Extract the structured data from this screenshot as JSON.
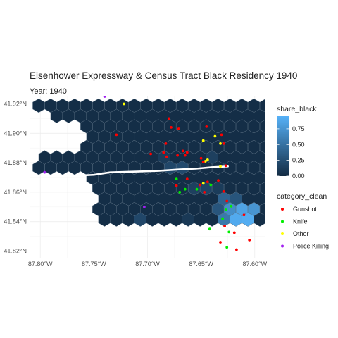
{
  "title": "Eisenhower Expressway & Census Tract Black Residency 1940",
  "subtitle": "Year: 1940",
  "chart_data": {
    "type": "hexbin map",
    "x_ticks": [
      "87.80°W",
      "87.75°W",
      "87.70°W",
      "87.65°W",
      "87.60°W"
    ],
    "x_tick_values": [
      -87.8,
      -87.75,
      -87.7,
      -87.65,
      -87.6
    ],
    "y_ticks": [
      "41.92°N",
      "41.90°N",
      "41.88°N",
      "41.86°N",
      "41.84°N",
      "41.82°N"
    ],
    "y_tick_values": [
      41.92,
      41.9,
      41.88,
      41.86,
      41.84,
      41.82
    ],
    "xlim": [
      -87.81,
      -87.59
    ],
    "ylim": [
      41.815,
      41.925
    ],
    "grid": true,
    "fill_legend": {
      "title": "share_black",
      "ticks": [
        "0.75",
        "0.50",
        "0.25",
        "0.00"
      ],
      "tick_values": [
        0.75,
        0.5,
        0.25,
        0.0
      ],
      "range": [
        0,
        0.95
      ],
      "color_low": "#132b43",
      "color_high": "#56b1f7"
    },
    "point_legend": {
      "title": "category_clean",
      "items": [
        {
          "label": "Gunshot",
          "color": "#ff0000"
        },
        {
          "label": "Knife",
          "color": "#00ee00"
        },
        {
          "label": "Other",
          "color": "#ffff00"
        },
        {
          "label": "Police Killing",
          "color": "#a020f0"
        }
      ]
    },
    "expressway": {
      "color": "#ffffff",
      "path": [
        [
          -87.79,
          41.8713
        ],
        [
          -87.765,
          41.8713
        ],
        [
          -87.75,
          41.8718
        ],
        [
          -87.735,
          41.8735
        ],
        [
          -87.71,
          41.874
        ],
        [
          -87.69,
          41.8745
        ],
        [
          -87.67,
          41.8755
        ],
        [
          -87.655,
          41.876
        ],
        [
          -87.64,
          41.877
        ],
        [
          -87.625,
          41.8775
        ]
      ]
    },
    "hexbins": [
      {
        "lon": -87.645,
        "lat": 41.8895,
        "share_black": 0.05
      },
      {
        "lon": -87.645,
        "lat": 41.8845,
        "share_black": 0.25
      },
      {
        "lon": -87.635,
        "lat": 41.8845,
        "share_black": 0.15
      },
      {
        "lon": -87.685,
        "lat": 41.8845,
        "share_black": 0.12
      },
      {
        "lon": -87.675,
        "lat": 41.8795,
        "share_black": 0.2
      },
      {
        "lon": -87.665,
        "lat": 41.8795,
        "share_black": 0.22
      },
      {
        "lon": -87.655,
        "lat": 41.8645,
        "share_black": 0.15
      },
      {
        "lon": -87.645,
        "lat": 41.8645,
        "share_black": 0.25
      },
      {
        "lon": -87.635,
        "lat": 41.8595,
        "share_black": 0.12
      },
      {
        "lon": -87.645,
        "lat": 41.8595,
        "share_black": 0.18
      },
      {
        "lon": -87.625,
        "lat": 41.8545,
        "share_black": 0.4
      },
      {
        "lon": -87.615,
        "lat": 41.8545,
        "share_black": 0.3
      },
      {
        "lon": -87.635,
        "lat": 41.8495,
        "share_black": 0.3
      },
      {
        "lon": -87.625,
        "lat": 41.8495,
        "share_black": 0.7
      },
      {
        "lon": -87.615,
        "lat": 41.8495,
        "share_black": 0.85
      },
      {
        "lon": -87.605,
        "lat": 41.8495,
        "share_black": 0.7
      },
      {
        "lon": -87.63,
        "lat": 41.8445,
        "share_black": 0.35
      },
      {
        "lon": -87.62,
        "lat": 41.8445,
        "share_black": 0.85
      },
      {
        "lon": -87.61,
        "lat": 41.8445,
        "share_black": 0.9
      },
      {
        "lon": -87.6,
        "lat": 41.8445,
        "share_black": 0.75
      },
      {
        "lon": -87.625,
        "lat": 41.8395,
        "share_black": 0.55
      },
      {
        "lon": -87.615,
        "lat": 41.8395,
        "share_black": 0.9
      },
      {
        "lon": -87.605,
        "lat": 41.8395,
        "share_black": 0.92
      },
      {
        "lon": -87.63,
        "lat": 41.8345,
        "share_black": 0.65
      },
      {
        "lon": -87.62,
        "lat": 41.8345,
        "share_black": 0.85
      },
      {
        "lon": -87.61,
        "lat": 41.8345,
        "share_black": 0.9
      },
      {
        "lon": -87.6,
        "lat": 41.8345,
        "share_black": 0.8
      },
      {
        "lon": -87.625,
        "lat": 41.8295,
        "share_black": 0.75
      },
      {
        "lon": -87.615,
        "lat": 41.8295,
        "share_black": 0.8
      },
      {
        "lon": -87.605,
        "lat": 41.8295,
        "share_black": 0.92
      },
      {
        "lon": -87.62,
        "lat": 41.8245,
        "share_black": 0.5
      },
      {
        "lon": -87.61,
        "lat": 41.8245,
        "share_black": 0.8
      },
      {
        "lon": -87.6,
        "lat": 41.8245,
        "share_black": 0.85
      },
      {
        "lon": -87.615,
        "lat": 41.8195,
        "share_black": 0.55
      },
      {
        "lon": -87.605,
        "lat": 41.8195,
        "share_black": 0.6
      },
      {
        "lon": -87.705,
        "lat": 41.8395,
        "share_black": 0.2
      },
      {
        "lon": -87.7,
        "lat": 41.8345,
        "share_black": 0.15
      },
      {
        "lon": -87.665,
        "lat": 41.8395,
        "share_black": 0.1
      },
      {
        "lon": -87.655,
        "lat": 41.8345,
        "share_black": 0.12
      },
      {
        "lon": -87.645,
        "lat": 41.8245,
        "share_black": 0.1
      }
    ],
    "incidents": [
      {
        "category": "Police Killing",
        "lon": -87.796,
        "lat": 41.8735
      },
      {
        "category": "Police Killing",
        "lon": -87.74,
        "lat": 41.925
      },
      {
        "category": "Police Killing",
        "lon": -87.703,
        "lat": 41.85
      },
      {
        "category": "Other",
        "lon": -87.722,
        "lat": 41.92
      },
      {
        "category": "Gunshot",
        "lon": -87.729,
        "lat": 41.899
      },
      {
        "category": "Gunshot",
        "lon": -87.678,
        "lat": 41.904
      },
      {
        "category": "Gunshot",
        "lon": -87.671,
        "lat": 41.903
      },
      {
        "category": "Gunshot",
        "lon": -87.68,
        "lat": 41.91
      },
      {
        "category": "Gunshot",
        "lon": -87.683,
        "lat": 41.893
      },
      {
        "category": "Gunshot",
        "lon": -87.645,
        "lat": 41.9045
      },
      {
        "category": "Other",
        "lon": -87.637,
        "lat": 41.898
      },
      {
        "category": "Other",
        "lon": -87.632,
        "lat": 41.893
      },
      {
        "category": "Gunshot",
        "lon": -87.631,
        "lat": 41.899
      },
      {
        "category": "Gunshot",
        "lon": -87.629,
        "lat": 41.893
      },
      {
        "category": "Other",
        "lon": -87.648,
        "lat": 41.895
      },
      {
        "category": "Gunshot",
        "lon": -87.697,
        "lat": 41.886
      },
      {
        "category": "Gunshot",
        "lon": -87.685,
        "lat": 41.887
      },
      {
        "category": "Gunshot",
        "lon": -87.682,
        "lat": 41.884
      },
      {
        "category": "Gunshot",
        "lon": -87.672,
        "lat": 41.885
      },
      {
        "category": "Gunshot",
        "lon": -87.667,
        "lat": 41.888
      },
      {
        "category": "Gunshot",
        "lon": -87.665,
        "lat": 41.885
      },
      {
        "category": "Gunshot",
        "lon": -87.663,
        "lat": 41.887
      },
      {
        "category": "Gunshot",
        "lon": -87.65,
        "lat": 41.883
      },
      {
        "category": "Other",
        "lon": -87.646,
        "lat": 41.881
      },
      {
        "category": "Other",
        "lon": -87.644,
        "lat": 41.882
      },
      {
        "category": "Gunshot",
        "lon": -87.648,
        "lat": 41.8805
      },
      {
        "category": "Other",
        "lon": -87.632,
        "lat": 41.8775
      },
      {
        "category": "Gunshot",
        "lon": -87.627,
        "lat": 41.878
      },
      {
        "category": "Knife",
        "lon": -87.673,
        "lat": 41.869
      },
      {
        "category": "Gunshot",
        "lon": -87.673,
        "lat": 41.8645
      },
      {
        "category": "Knife",
        "lon": -87.67,
        "lat": 41.86
      },
      {
        "category": "Gunshot",
        "lon": -87.663,
        "lat": 41.869
      },
      {
        "category": "Knife",
        "lon": -87.665,
        "lat": 41.862
      },
      {
        "category": "Other",
        "lon": -87.648,
        "lat": 41.866
      },
      {
        "category": "Gunshot",
        "lon": -87.651,
        "lat": 41.865
      },
      {
        "category": "Knife",
        "lon": -87.654,
        "lat": 41.862
      },
      {
        "category": "Gunshot",
        "lon": -87.647,
        "lat": 41.86
      },
      {
        "category": "Gunshot",
        "lon": -87.644,
        "lat": 41.867
      },
      {
        "category": "Knife",
        "lon": -87.641,
        "lat": 41.865
      },
      {
        "category": "Gunshot",
        "lon": -87.634,
        "lat": 41.868
      },
      {
        "category": "Gunshot",
        "lon": -87.629,
        "lat": 41.8605
      },
      {
        "category": "Gunshot",
        "lon": -87.626,
        "lat": 41.854
      },
      {
        "category": "Knife",
        "lon": -87.627,
        "lat": 41.848
      },
      {
        "category": "Knife",
        "lon": -87.622,
        "lat": 41.8505
      },
      {
        "category": "Knife",
        "lon": -87.63,
        "lat": 41.842
      },
      {
        "category": "Gunshot",
        "lon": -87.628,
        "lat": 41.837
      },
      {
        "category": "Knife",
        "lon": -87.624,
        "lat": 41.833
      },
      {
        "category": "Knife",
        "lon": -87.642,
        "lat": 41.835
      },
      {
        "category": "Gunshot",
        "lon": -87.632,
        "lat": 41.826
      },
      {
        "category": "Knife",
        "lon": -87.626,
        "lat": 41.8225
      },
      {
        "category": "Gunshot",
        "lon": -87.617,
        "lat": 41.821
      },
      {
        "category": "Gunshot",
        "lon": -87.605,
        "lat": 41.8275
      },
      {
        "category": "Gunshot",
        "lon": -87.619,
        "lat": 41.8325
      },
      {
        "category": "Gunshot",
        "lon": -87.61,
        "lat": 41.8445
      }
    ]
  }
}
